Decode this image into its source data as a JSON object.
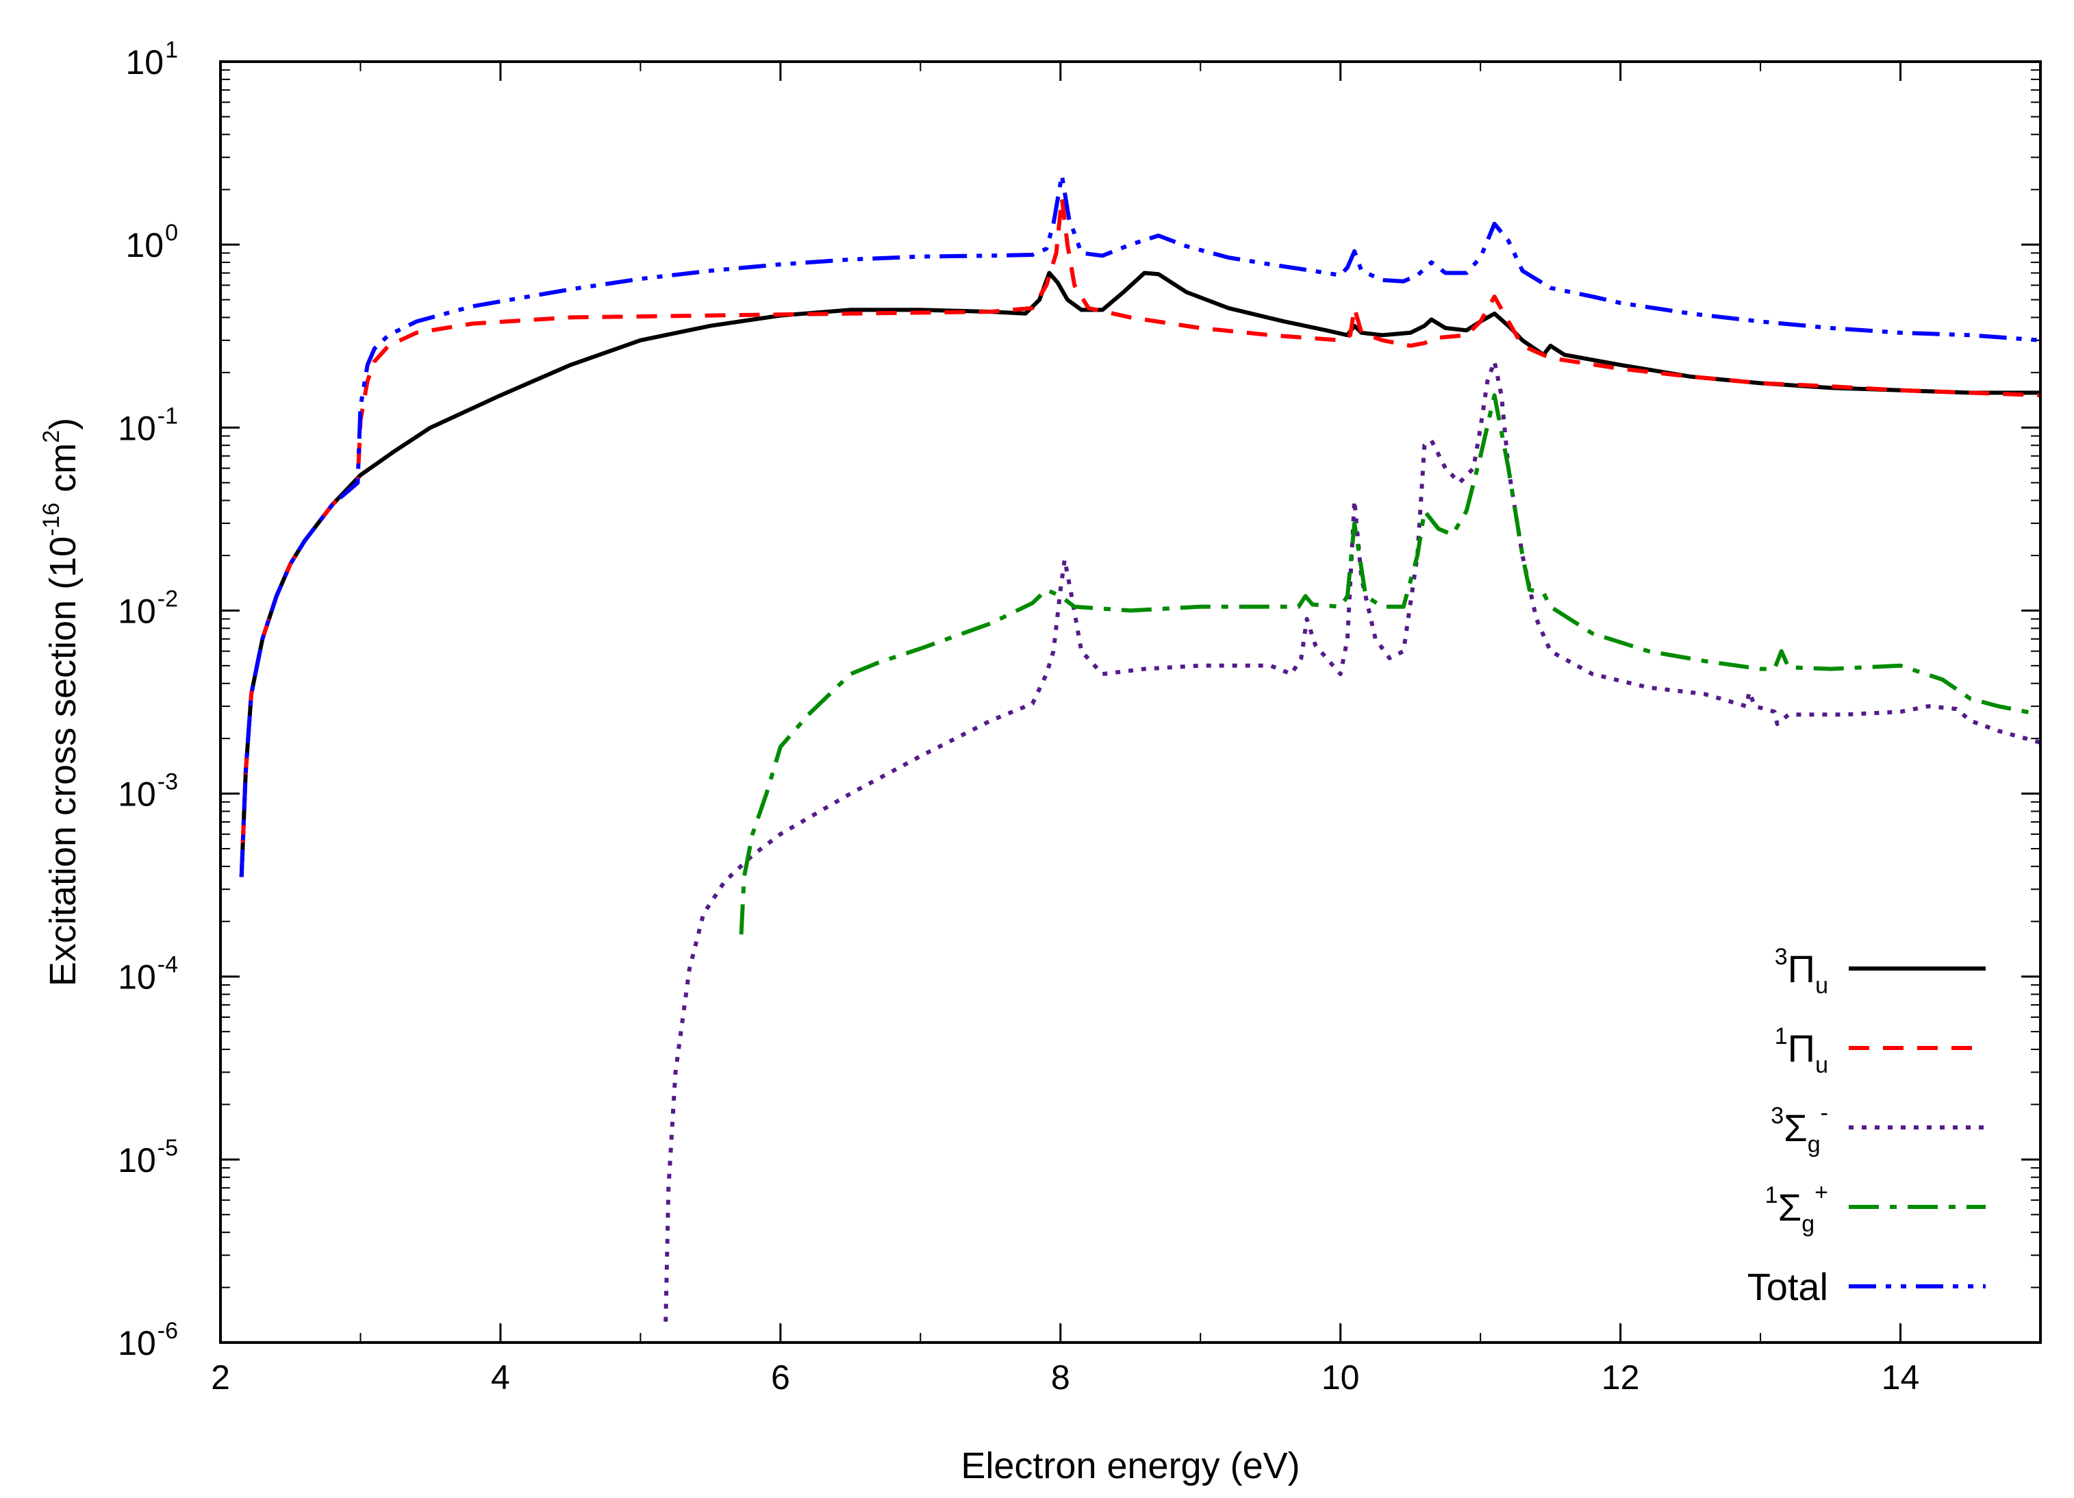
{
  "chart_data": {
    "type": "line",
    "title": "",
    "xlabel": "Electron energy (eV)",
    "ylabel": "Excitation cross section (10^-16 cm^2)",
    "ylabel_parts": {
      "main": "Excitation cross section (10",
      "exp": "-16",
      "unit": " cm",
      "unit_exp": "2",
      "close": ")"
    },
    "xlim": [
      2,
      15
    ],
    "ylim": [
      1e-06,
      10
    ],
    "yscale": "log",
    "x_ticks": [
      {
        "value": 2,
        "label": "2"
      },
      {
        "value": 4,
        "label": "4"
      },
      {
        "value": 6,
        "label": "6"
      },
      {
        "value": 8,
        "label": "8"
      },
      {
        "value": 10,
        "label": "10"
      },
      {
        "value": 12,
        "label": "12"
      },
      {
        "value": 14,
        "label": "14"
      }
    ],
    "y_ticks": [
      {
        "exp": -6,
        "base": "10",
        "sup": "-6"
      },
      {
        "exp": -5,
        "base": "10",
        "sup": "-5"
      },
      {
        "exp": -4,
        "base": "10",
        "sup": "-4"
      },
      {
        "exp": -3,
        "base": "10",
        "sup": "-3"
      },
      {
        "exp": -2,
        "base": "10",
        "sup": "-2"
      },
      {
        "exp": -1,
        "base": "10",
        "sup": "-1"
      },
      {
        "exp": 0,
        "base": "10",
        "sup": "0"
      },
      {
        "exp": 1,
        "base": "10",
        "sup": "1"
      }
    ],
    "legend_position": "bottom-right",
    "series": [
      {
        "name": "3Πu",
        "label": {
          "pre": "3",
          "main": "Π",
          "sub": "u",
          "post": ""
        },
        "color": "#000000",
        "dash": "solid",
        "points": [
          [
            2.15,
            0.00035
          ],
          [
            2.18,
            0.0013
          ],
          [
            2.22,
            0.0035
          ],
          [
            2.3,
            0.007
          ],
          [
            2.4,
            0.012
          ],
          [
            2.5,
            0.018
          ],
          [
            2.6,
            0.024
          ],
          [
            2.8,
            0.038
          ],
          [
            3.0,
            0.055
          ],
          [
            3.25,
            0.075
          ],
          [
            3.5,
            0.1
          ],
          [
            4.0,
            0.15
          ],
          [
            4.5,
            0.22
          ],
          [
            5.0,
            0.3
          ],
          [
            5.5,
            0.36
          ],
          [
            6.0,
            0.41
          ],
          [
            6.5,
            0.44
          ],
          [
            7.0,
            0.44
          ],
          [
            7.5,
            0.43
          ],
          [
            7.75,
            0.42
          ],
          [
            7.85,
            0.5
          ],
          [
            7.92,
            0.7
          ],
          [
            7.98,
            0.62
          ],
          [
            8.05,
            0.5
          ],
          [
            8.15,
            0.44
          ],
          [
            8.3,
            0.44
          ],
          [
            8.45,
            0.55
          ],
          [
            8.6,
            0.7
          ],
          [
            8.7,
            0.69
          ],
          [
            8.9,
            0.55
          ],
          [
            9.2,
            0.45
          ],
          [
            9.6,
            0.38
          ],
          [
            9.9,
            0.34
          ],
          [
            10.05,
            0.32
          ],
          [
            10.1,
            0.36
          ],
          [
            10.15,
            0.33
          ],
          [
            10.3,
            0.32
          ],
          [
            10.5,
            0.33
          ],
          [
            10.6,
            0.36
          ],
          [
            10.65,
            0.39
          ],
          [
            10.75,
            0.35
          ],
          [
            10.9,
            0.34
          ],
          [
            11.0,
            0.38
          ],
          [
            11.1,
            0.42
          ],
          [
            11.2,
            0.36
          ],
          [
            11.3,
            0.3
          ],
          [
            11.45,
            0.25
          ],
          [
            11.5,
            0.28
          ],
          [
            11.6,
            0.25
          ],
          [
            12.0,
            0.22
          ],
          [
            12.5,
            0.19
          ],
          [
            13.0,
            0.175
          ],
          [
            13.5,
            0.165
          ],
          [
            14.0,
            0.16
          ],
          [
            14.5,
            0.155
          ],
          [
            15.0,
            0.155
          ]
        ]
      },
      {
        "name": "1Πu",
        "label": {
          "pre": "1",
          "main": "Π",
          "sub": "u",
          "post": ""
        },
        "color": "#ff0000",
        "dash": "dashed",
        "points": [
          [
            2.15,
            0.00035
          ],
          [
            2.18,
            0.0013
          ],
          [
            2.22,
            0.0035
          ],
          [
            2.3,
            0.007
          ],
          [
            2.4,
            0.012
          ],
          [
            2.5,
            0.018
          ],
          [
            2.6,
            0.024
          ],
          [
            2.8,
            0.038
          ],
          [
            2.98,
            0.05
          ],
          [
            3.0,
            0.11
          ],
          [
            3.05,
            0.18
          ],
          [
            3.1,
            0.23
          ],
          [
            3.2,
            0.28
          ],
          [
            3.4,
            0.33
          ],
          [
            3.8,
            0.37
          ],
          [
            4.5,
            0.4
          ],
          [
            5.5,
            0.41
          ],
          [
            6.5,
            0.42
          ],
          [
            7.5,
            0.43
          ],
          [
            7.8,
            0.45
          ],
          [
            7.9,
            0.6
          ],
          [
            7.97,
            0.9
          ],
          [
            8.01,
            1.8
          ],
          [
            8.05,
            1.0
          ],
          [
            8.1,
            0.6
          ],
          [
            8.2,
            0.45
          ],
          [
            8.5,
            0.4
          ],
          [
            9.0,
            0.35
          ],
          [
            9.5,
            0.32
          ],
          [
            10.0,
            0.3
          ],
          [
            10.07,
            0.32
          ],
          [
            10.1,
            0.45
          ],
          [
            10.15,
            0.33
          ],
          [
            10.3,
            0.3
          ],
          [
            10.5,
            0.28
          ],
          [
            10.6,
            0.29
          ],
          [
            10.7,
            0.31
          ],
          [
            10.9,
            0.32
          ],
          [
            11.0,
            0.38
          ],
          [
            11.1,
            0.52
          ],
          [
            11.2,
            0.38
          ],
          [
            11.3,
            0.28
          ],
          [
            11.5,
            0.24
          ],
          [
            12.0,
            0.21
          ],
          [
            12.5,
            0.19
          ],
          [
            13.0,
            0.175
          ],
          [
            13.5,
            0.168
          ],
          [
            14.0,
            0.16
          ],
          [
            14.5,
            0.155
          ],
          [
            15.0,
            0.15
          ]
        ]
      },
      {
        "name": "3Σg-",
        "label": {
          "pre": "3",
          "main": "Σ",
          "sub": "g",
          "post": "-"
        },
        "color": "#551a8b",
        "dash": "dotted",
        "points": [
          [
            5.18,
            1.3e-06
          ],
          [
            5.2,
            7e-06
          ],
          [
            5.25,
            3e-05
          ],
          [
            5.35,
            0.00011
          ],
          [
            5.45,
            0.00022
          ],
          [
            5.6,
            0.00033
          ],
          [
            5.8,
            0.00046
          ],
          [
            6.0,
            0.0006
          ],
          [
            6.5,
            0.001
          ],
          [
            7.0,
            0.0016
          ],
          [
            7.5,
            0.0025
          ],
          [
            7.8,
            0.0031
          ],
          [
            7.9,
            0.0045
          ],
          [
            7.95,
            0.006
          ],
          [
            8.0,
            0.013
          ],
          [
            8.03,
            0.019
          ],
          [
            8.08,
            0.012
          ],
          [
            8.15,
            0.006
          ],
          [
            8.3,
            0.0045
          ],
          [
            8.6,
            0.0048
          ],
          [
            9.0,
            0.005
          ],
          [
            9.5,
            0.005
          ],
          [
            9.65,
            0.0045
          ],
          [
            9.72,
            0.0055
          ],
          [
            9.76,
            0.009
          ],
          [
            9.82,
            0.0065
          ],
          [
            9.9,
            0.0055
          ],
          [
            10.0,
            0.0045
          ],
          [
            10.05,
            0.007
          ],
          [
            10.1,
            0.04
          ],
          [
            10.15,
            0.015
          ],
          [
            10.25,
            0.007
          ],
          [
            10.35,
            0.0055
          ],
          [
            10.45,
            0.006
          ],
          [
            10.55,
            0.02
          ],
          [
            10.6,
            0.08
          ],
          [
            10.65,
            0.085
          ],
          [
            10.75,
            0.06
          ],
          [
            10.85,
            0.05
          ],
          [
            10.95,
            0.06
          ],
          [
            11.0,
            0.1
          ],
          [
            11.05,
            0.18
          ],
          [
            11.1,
            0.23
          ],
          [
            11.15,
            0.15
          ],
          [
            11.2,
            0.06
          ],
          [
            11.3,
            0.02
          ],
          [
            11.4,
            0.009
          ],
          [
            11.5,
            0.006
          ],
          [
            11.8,
            0.0045
          ],
          [
            12.2,
            0.0038
          ],
          [
            12.6,
            0.0035
          ],
          [
            12.9,
            0.003
          ],
          [
            12.92,
            0.0036
          ],
          [
            12.96,
            0.003
          ],
          [
            13.1,
            0.0028
          ],
          [
            13.12,
            0.0024
          ],
          [
            13.2,
            0.0027
          ],
          [
            13.6,
            0.0027
          ],
          [
            14.0,
            0.0028
          ],
          [
            14.2,
            0.003
          ],
          [
            14.4,
            0.0029
          ],
          [
            14.5,
            0.0025
          ],
          [
            14.7,
            0.0022
          ],
          [
            15.0,
            0.0019
          ]
        ]
      },
      {
        "name": "1Σg+",
        "label": {
          "pre": "1",
          "main": "Σ",
          "sub": "g",
          "post": "+"
        },
        "color": "#008b00",
        "dash": "dashdot",
        "points": [
          [
            5.72,
            0.00017
          ],
          [
            5.74,
            0.00035
          ],
          [
            5.8,
            0.0006
          ],
          [
            5.9,
            0.001
          ],
          [
            6.0,
            0.0018
          ],
          [
            6.2,
            0.0027
          ],
          [
            6.5,
            0.0045
          ],
          [
            6.7,
            0.0052
          ],
          [
            7.0,
            0.0062
          ],
          [
            7.5,
            0.0085
          ],
          [
            7.8,
            0.011
          ],
          [
            7.9,
            0.013
          ],
          [
            8.0,
            0.012
          ],
          [
            8.1,
            0.0105
          ],
          [
            8.5,
            0.01
          ],
          [
            9.0,
            0.0105
          ],
          [
            9.5,
            0.0105
          ],
          [
            9.7,
            0.0105
          ],
          [
            9.75,
            0.012
          ],
          [
            9.8,
            0.0108
          ],
          [
            10.0,
            0.0105
          ],
          [
            10.05,
            0.012
          ],
          [
            10.1,
            0.03
          ],
          [
            10.18,
            0.012
          ],
          [
            10.3,
            0.0105
          ],
          [
            10.45,
            0.0105
          ],
          [
            10.55,
            0.02
          ],
          [
            10.6,
            0.035
          ],
          [
            10.7,
            0.028
          ],
          [
            10.8,
            0.026
          ],
          [
            10.9,
            0.035
          ],
          [
            11.0,
            0.07
          ],
          [
            11.1,
            0.15
          ],
          [
            11.2,
            0.06
          ],
          [
            11.3,
            0.02
          ],
          [
            11.35,
            0.013
          ],
          [
            11.45,
            0.0125
          ],
          [
            11.5,
            0.0105
          ],
          [
            11.8,
            0.0075
          ],
          [
            12.2,
            0.006
          ],
          [
            12.6,
            0.0053
          ],
          [
            13.0,
            0.0048
          ],
          [
            13.1,
            0.0048
          ],
          [
            13.15,
            0.006
          ],
          [
            13.2,
            0.0049
          ],
          [
            13.5,
            0.0048
          ],
          [
            14.0,
            0.005
          ],
          [
            14.3,
            0.0042
          ],
          [
            14.5,
            0.0033
          ],
          [
            14.7,
            0.003
          ],
          [
            15.0,
            0.0027
          ]
        ]
      },
      {
        "name": "Total",
        "label": {
          "pre": "",
          "main": "Total",
          "sub": "",
          "post": ""
        },
        "color": "#0000ff",
        "dash": "dashdotdot",
        "points": [
          [
            2.15,
            0.00035
          ],
          [
            2.18,
            0.0013
          ],
          [
            2.22,
            0.0035
          ],
          [
            2.3,
            0.007
          ],
          [
            2.4,
            0.012
          ],
          [
            2.5,
            0.018
          ],
          [
            2.6,
            0.024
          ],
          [
            2.8,
            0.038
          ],
          [
            2.98,
            0.05
          ],
          [
            3.0,
            0.13
          ],
          [
            3.05,
            0.22
          ],
          [
            3.1,
            0.27
          ],
          [
            3.2,
            0.32
          ],
          [
            3.4,
            0.38
          ],
          [
            3.8,
            0.46
          ],
          [
            4.5,
            0.57
          ],
          [
            5.0,
            0.65
          ],
          [
            5.5,
            0.72
          ],
          [
            6.0,
            0.78
          ],
          [
            6.5,
            0.83
          ],
          [
            7.0,
            0.86
          ],
          [
            7.5,
            0.87
          ],
          [
            7.8,
            0.88
          ],
          [
            7.9,
            0.95
          ],
          [
            7.95,
            1.3
          ],
          [
            8.01,
            2.4
          ],
          [
            8.06,
            1.4
          ],
          [
            8.15,
            0.9
          ],
          [
            8.3,
            0.87
          ],
          [
            8.5,
            1.0
          ],
          [
            8.7,
            1.12
          ],
          [
            8.9,
            0.98
          ],
          [
            9.2,
            0.85
          ],
          [
            9.5,
            0.78
          ],
          [
            9.8,
            0.72
          ],
          [
            10.0,
            0.68
          ],
          [
            10.05,
            0.75
          ],
          [
            10.1,
            0.92
          ],
          [
            10.15,
            0.72
          ],
          [
            10.3,
            0.64
          ],
          [
            10.45,
            0.63
          ],
          [
            10.55,
            0.68
          ],
          [
            10.65,
            0.8
          ],
          [
            10.75,
            0.7
          ],
          [
            10.9,
            0.7
          ],
          [
            11.0,
            0.85
          ],
          [
            11.1,
            1.3
          ],
          [
            11.2,
            1.05
          ],
          [
            11.3,
            0.72
          ],
          [
            11.5,
            0.58
          ],
          [
            11.8,
            0.52
          ],
          [
            12.0,
            0.48
          ],
          [
            12.5,
            0.42
          ],
          [
            13.0,
            0.38
          ],
          [
            13.5,
            0.35
          ],
          [
            14.0,
            0.33
          ],
          [
            14.5,
            0.32
          ],
          [
            15.0,
            0.3
          ]
        ]
      }
    ]
  }
}
